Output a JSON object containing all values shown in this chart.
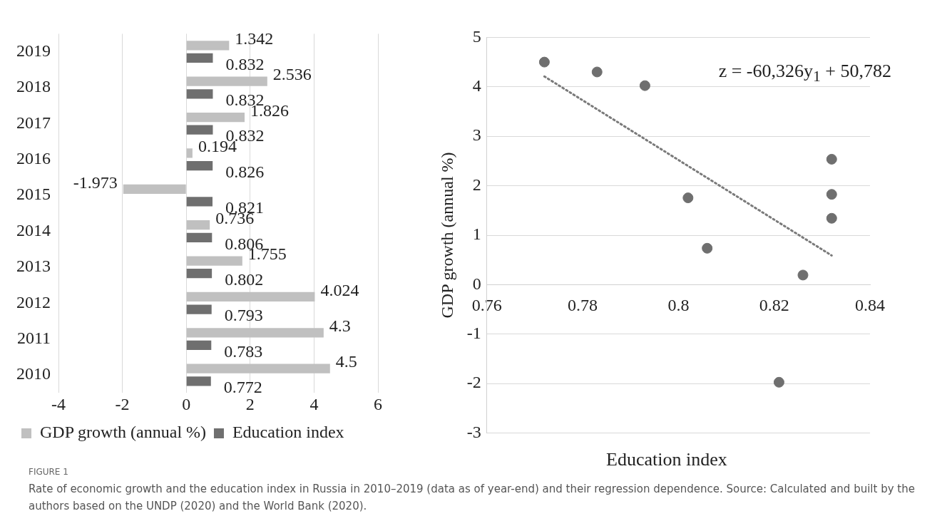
{
  "chart_data": [
    {
      "type": "bar",
      "orientation": "horizontal",
      "categories": [
        "2019",
        "2018",
        "2017",
        "2016",
        "2015",
        "2014",
        "2013",
        "2012",
        "2011",
        "2010"
      ],
      "series": [
        {
          "name": "GDP growth (annual %)",
          "color": "#c0c0c0",
          "values": [
            1.342,
            2.536,
            1.826,
            0.194,
            -1.973,
            0.736,
            1.755,
            4.024,
            4.3,
            4.5
          ]
        },
        {
          "name": "Education index",
          "color": "#6f6f6f",
          "values": [
            0.832,
            0.832,
            0.832,
            0.826,
            0.821,
            0.806,
            0.802,
            0.793,
            0.783,
            0.772
          ]
        }
      ],
      "xlim": [
        -4,
        6
      ],
      "xticks": [
        -4,
        -2,
        0,
        2,
        4,
        6
      ],
      "grid": "x",
      "legend": "bottom",
      "data_labels": true,
      "annotations": [
        "FIGURE 1",
        "Rate of economic growth and the education index in Russia in 2010–2019 (data as of year-end) and their regression dependence. Source: Calculated and built by the authors based on the UNDP (2020) and the World Bank (2020)."
      ]
    },
    {
      "type": "scatter",
      "xlabel": "Education index",
      "ylabel": "GDP growth (annual %)",
      "grid": "y",
      "legend": false,
      "xlim": [
        0.76,
        0.84
      ],
      "xticks": [
        0.76,
        0.78,
        0.8,
        0.82,
        0.84
      ],
      "ylim": [
        -3,
        5
      ],
      "yticks": [
        -3,
        -2,
        -1,
        0,
        1,
        2,
        3,
        4,
        5
      ],
      "series": [
        {
          "color": "#6f6f6f",
          "marker": "circle",
          "x": [
            0.772,
            0.783,
            0.793,
            0.802,
            0.806,
            0.821,
            0.826,
            0.832,
            0.832,
            0.832
          ],
          "values": [
            4.5,
            4.3,
            4.024,
            1.755,
            0.736,
            -1.973,
            0.194,
            1.826,
            2.536,
            1.342
          ]
        },
        {
          "type": "line",
          "line_style": "dotted",
          "color": "#7a7a7a",
          "x": [
            0.772,
            0.832
          ],
          "values": [
            4.21,
            0.59
          ]
        }
      ],
      "annotations": [
        "z = -60,326y$_{1}$ + 50,782"
      ]
    }
  ]
}
